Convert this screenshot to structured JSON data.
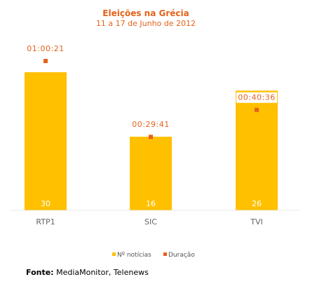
{
  "chart_data": {
    "type": "bar",
    "title": "Eleições na Grécia",
    "subtitle": "11 a 17 de Junho de 2012",
    "categories": [
      "RTP1",
      "SIC",
      "TVI"
    ],
    "series": [
      {
        "name": "Nº notícias",
        "values": [
          30,
          16,
          26
        ],
        "color": "#ffc000"
      },
      {
        "name": "Duração",
        "values": [
          "01:00:21",
          "00:29:41",
          "00:40:36"
        ],
        "color": "#e5621a"
      }
    ],
    "duration_seconds": [
      3621,
      1781,
      2436
    ],
    "legend_position": "bottom",
    "grid": false
  },
  "source": {
    "label": "Fonte:",
    "text": "MediaMonitor, Telenews"
  }
}
